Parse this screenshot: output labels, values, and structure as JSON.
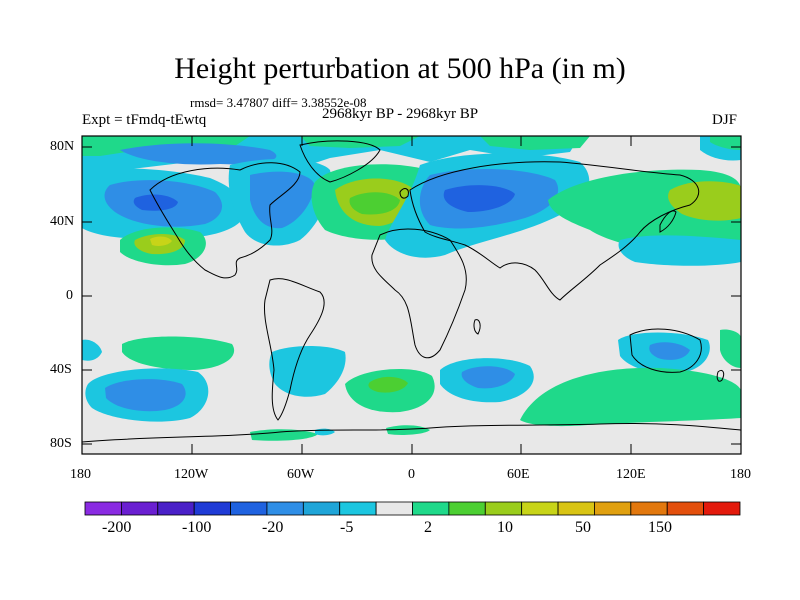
{
  "title": "Height perturbation at 500 hPa (in m)",
  "stats": "rmsd= 3.47807 diff= 3.38552e-08",
  "experiment": "Expt = tFmdq-tEwtq",
  "period": "2968kyr BP - 2968kyr BP",
  "season": "DJF",
  "lat_labels": [
    "80N",
    "40N",
    "0",
    "40S",
    "80S"
  ],
  "lon_labels": [
    "180",
    "120W",
    "60W",
    "0",
    "60E",
    "120E",
    "180"
  ],
  "colorbar": {
    "colors": [
      "#8a2be2",
      "#6a1fd1",
      "#4a20c8",
      "#1f3bd6",
      "#1f62e0",
      "#2f8ee6",
      "#1fa5d8",
      "#1cc6e0",
      "#e8e8e8",
      "#1fd98a",
      "#4ccf32",
      "#9acd1c",
      "#c8d418",
      "#d9c414",
      "#e0a010",
      "#e2780e",
      "#e34f0c",
      "#e31a0c"
    ],
    "labels": [
      "-200",
      "-100",
      "-20",
      "-5",
      "2",
      "10",
      "50",
      "150"
    ]
  }
}
